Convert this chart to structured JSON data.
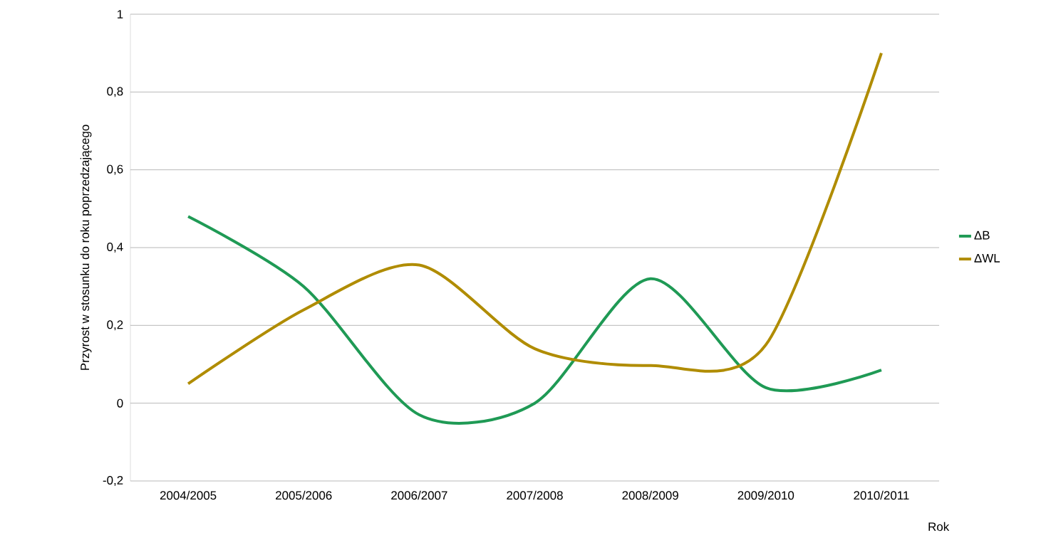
{
  "chart_data": {
    "type": "line",
    "xlabel": "Rok",
    "ylabel": "Przyrost w stosunku do roku poprzedzającego",
    "categories": [
      "2004/2005",
      "2005/2006",
      "2006/2007",
      "2007/2008",
      "2008/2009",
      "2009/2010",
      "2010/2011"
    ],
    "series": [
      {
        "name": "ΔB",
        "color": "#1f9a55",
        "values": [
          0.48,
          0.3,
          -0.03,
          0.0,
          0.32,
          0.04,
          0.085
        ]
      },
      {
        "name": "ΔWL",
        "color": "#b08c00",
        "values": [
          0.05,
          0.24,
          0.355,
          0.14,
          0.097,
          0.15,
          0.9
        ]
      }
    ],
    "ylim": [
      -0.2,
      1
    ],
    "yticks": [
      {
        "value": -0.2,
        "label": "-0,2"
      },
      0,
      {
        "value": 0.2,
        "label": "0,2"
      },
      {
        "value": 0.4,
        "label": "0,4"
      },
      {
        "value": 0.6,
        "label": "0,6"
      },
      {
        "value": 0.8,
        "label": "0,8"
      },
      1
    ],
    "grid": "y",
    "legend": "right",
    "marker": "none",
    "line_style": "solid"
  }
}
